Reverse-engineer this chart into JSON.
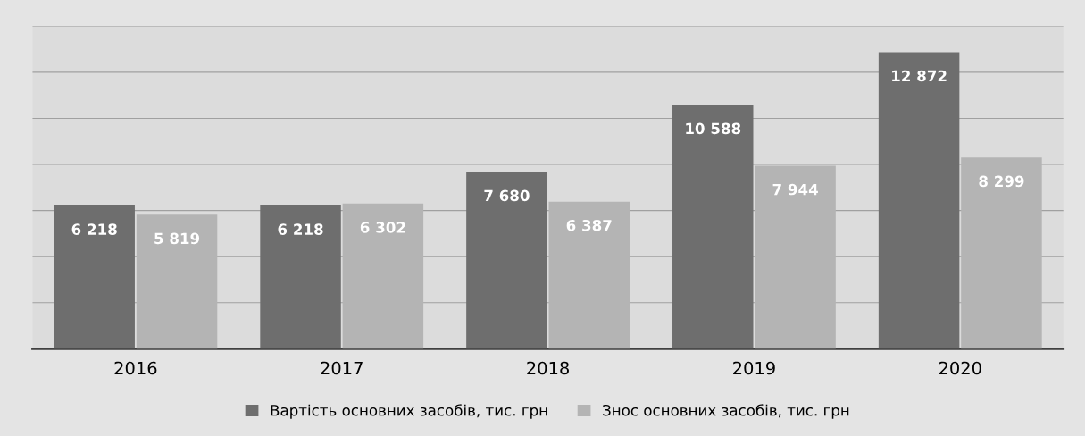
{
  "chart_data": {
    "type": "bar",
    "categories": [
      "2016",
      "2017",
      "2018",
      "2019",
      "2020"
    ],
    "series": [
      {
        "name": "Вартість основних засобів, тис. грн",
        "color": "#6e6e6e",
        "values": [
          6218,
          6218,
          7680,
          10588,
          12872
        ],
        "value_labels": [
          "6 218",
          "6 218",
          "7 680",
          "10 588",
          "12 872"
        ]
      },
      {
        "name": "Знос основних засобів, тис. грн",
        "color": "#b4b4b4",
        "values": [
          5819,
          6302,
          6387,
          7944,
          8299
        ],
        "value_labels": [
          "5 819",
          "6 302",
          "6 387",
          "7 944",
          "8 299"
        ]
      }
    ],
    "ylim": [
      0,
      14000
    ],
    "yticks": [
      {
        "value": 0,
        "label": null
      },
      {
        "value": 2000,
        "label": null
      },
      {
        "value": 4000,
        "label": null
      },
      {
        "value": 6000,
        "label": null
      },
      {
        "value": 8000,
        "label": null
      },
      {
        "value": 10000,
        "label": null
      },
      {
        "value": 12000,
        "label": null
      },
      {
        "value": 14000,
        "label": null
      }
    ],
    "tick_labels": "x",
    "grid": "y",
    "legend": "bottom"
  }
}
